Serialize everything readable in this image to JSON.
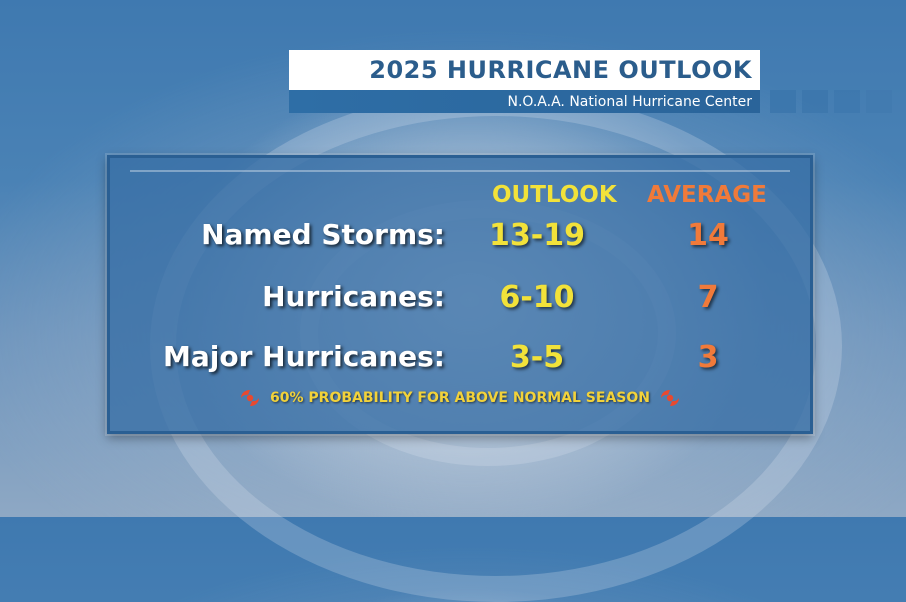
{
  "header": {
    "title": "2025 HURRICANE OUTLOOK",
    "subtitle": "N.O.A.A. National Hurricane Center"
  },
  "table": {
    "columns": {
      "outlook": "OUTLOOK",
      "average": "AVERAGE"
    },
    "rows": [
      {
        "label": "Named Storms:",
        "outlook": "13-19",
        "average": "14"
      },
      {
        "label": "Hurricanes:",
        "outlook": "6-10",
        "average": "7"
      },
      {
        "label": "Major Hurricanes:",
        "outlook": "3-5",
        "average": "3"
      }
    ]
  },
  "footer": {
    "note": "60% PROBABILITY FOR ABOVE NORMAL SEASON",
    "icon": "hurricane-icon"
  },
  "colors": {
    "outlook": "#f2e23a",
    "average": "#f07a3a",
    "icon": "#e8492f"
  }
}
